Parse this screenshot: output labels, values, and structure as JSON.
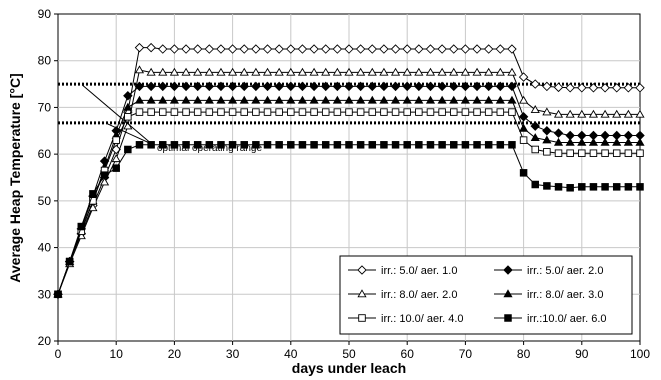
{
  "chart_data": {
    "type": "line",
    "title": "",
    "xlabel": "days under leach",
    "ylabel": "Average Heap Temperature [°C]",
    "xlim": [
      0,
      100
    ],
    "ylim": [
      20,
      90
    ],
    "xticks": [
      0,
      10,
      20,
      30,
      40,
      50,
      60,
      70,
      80,
      90,
      100
    ],
    "yticks": [
      20,
      30,
      40,
      50,
      60,
      70,
      80,
      90
    ],
    "grid": true,
    "legend_position": "bottom-right",
    "reference_lines": [
      {
        "y": 75,
        "style": "dotted"
      },
      {
        "y": 66.7,
        "style": "dotted"
      }
    ],
    "annotations": [
      {
        "text": "optimal operating range",
        "x": 17,
        "y": 61.5
      }
    ],
    "x": [
      0,
      2,
      4,
      6,
      8,
      10,
      12,
      14,
      16,
      18,
      20,
      22,
      24,
      26,
      28,
      30,
      32,
      34,
      36,
      38,
      40,
      42,
      44,
      46,
      48,
      50,
      52,
      54,
      56,
      58,
      60,
      62,
      64,
      66,
      68,
      70,
      72,
      74,
      76,
      78,
      80,
      82,
      84,
      86,
      88,
      90,
      92,
      94,
      96,
      98,
      100
    ],
    "series": [
      {
        "name": "irr.: 5.0/ aer. 1.0",
        "marker": "diamond-open",
        "values": [
          30,
          37,
          43,
          49,
          55,
          61,
          69,
          82.8,
          82.8,
          82.5,
          82.5,
          82.5,
          82.5,
          82.5,
          82.5,
          82.5,
          82.5,
          82.5,
          82.5,
          82.5,
          82.5,
          82.5,
          82.5,
          82.5,
          82.5,
          82.5,
          82.5,
          82.5,
          82.5,
          82.5,
          82.5,
          82.5,
          82.5,
          82.5,
          82.5,
          82.5,
          82.5,
          82.5,
          82.5,
          82.5,
          76.5,
          75,
          74.5,
          74.3,
          74.2,
          74.2,
          74.2,
          74.2,
          74.2,
          74.2,
          74.2
        ]
      },
      {
        "name": "irr.: 5.0/ aer. 2.0",
        "marker": "diamond-filled",
        "values": [
          30,
          37,
          44,
          51,
          58.5,
          65,
          72.5,
          74.5,
          74.5,
          74.5,
          74.5,
          74.5,
          74.5,
          74.5,
          74.5,
          74.5,
          74.5,
          74.5,
          74.5,
          74.5,
          74.5,
          74.5,
          74.5,
          74.5,
          74.5,
          74.5,
          74.5,
          74.5,
          74.5,
          74.5,
          74.5,
          74.5,
          74.5,
          74.5,
          74.5,
          74.5,
          74.5,
          74.5,
          74.5,
          74.5,
          68,
          66,
          65,
          64.5,
          64,
          64,
          64,
          64,
          64,
          64,
          64
        ]
      },
      {
        "name": "irr.: 8.0/ aer. 2.0",
        "marker": "triangle-open",
        "values": [
          30,
          36.5,
          42.5,
          48.5,
          54,
          59,
          66,
          78,
          77.5,
          77.5,
          77.5,
          77.5,
          77.5,
          77.5,
          77.5,
          77.5,
          77.5,
          77.5,
          77.5,
          77.5,
          77.5,
          77.5,
          77.5,
          77.5,
          77.5,
          77.5,
          77.5,
          77.5,
          77.5,
          77.5,
          77.5,
          77.5,
          77.5,
          77.5,
          77.5,
          77.5,
          77.5,
          77.5,
          77.5,
          77.5,
          71.5,
          69.5,
          69,
          68.5,
          68.5,
          68.5,
          68.5,
          68.5,
          68.5,
          68.5,
          68.5
        ]
      },
      {
        "name": "irr.: 8.0/ aer. 3.0",
        "marker": "triangle-filled",
        "values": [
          30,
          37,
          43.5,
          50,
          57,
          64,
          70,
          71.5,
          71.5,
          71.5,
          71.5,
          71.5,
          71.5,
          71.5,
          71.5,
          71.5,
          71.5,
          71.5,
          71.5,
          71.5,
          71.5,
          71.5,
          71.5,
          71.5,
          71.5,
          71.5,
          71.5,
          71.5,
          71.5,
          71.5,
          71.5,
          71.5,
          71.5,
          71.5,
          71.5,
          71.5,
          71.5,
          71.5,
          71.5,
          71.5,
          65.5,
          63.5,
          63,
          62.5,
          62.5,
          62.5,
          62.5,
          62.5,
          62.5,
          62.5,
          62.5
        ]
      },
      {
        "name": "irr.: 10.0/ aer. 4.0",
        "marker": "square-open",
        "values": [
          30,
          37,
          43.5,
          50,
          56.5,
          63,
          68,
          69,
          69,
          69,
          69,
          69,
          69,
          69,
          69,
          69,
          69,
          69,
          69,
          69,
          69,
          69,
          69,
          69,
          69,
          69,
          69,
          69,
          69,
          69,
          69,
          69,
          69,
          69,
          69,
          69,
          69,
          69,
          69,
          69,
          63,
          61,
          60.5,
          60.2,
          60.2,
          60.2,
          60.2,
          60.2,
          60.2,
          60.2,
          60.2
        ]
      },
      {
        "name": "irr.:10.0/ aer. 6.0",
        "marker": "square-filled",
        "values": [
          30,
          37,
          44.5,
          51.5,
          55.5,
          57,
          61,
          62,
          62,
          62,
          62,
          62,
          62,
          62,
          62,
          62,
          62,
          62,
          62,
          62,
          62,
          62,
          62,
          62,
          62,
          62,
          62,
          62,
          62,
          62,
          62,
          62,
          62,
          62,
          62,
          62,
          62,
          62,
          62,
          62,
          56,
          53.5,
          53.2,
          53,
          52.8,
          53,
          53,
          53,
          53,
          53,
          53
        ]
      }
    ]
  }
}
